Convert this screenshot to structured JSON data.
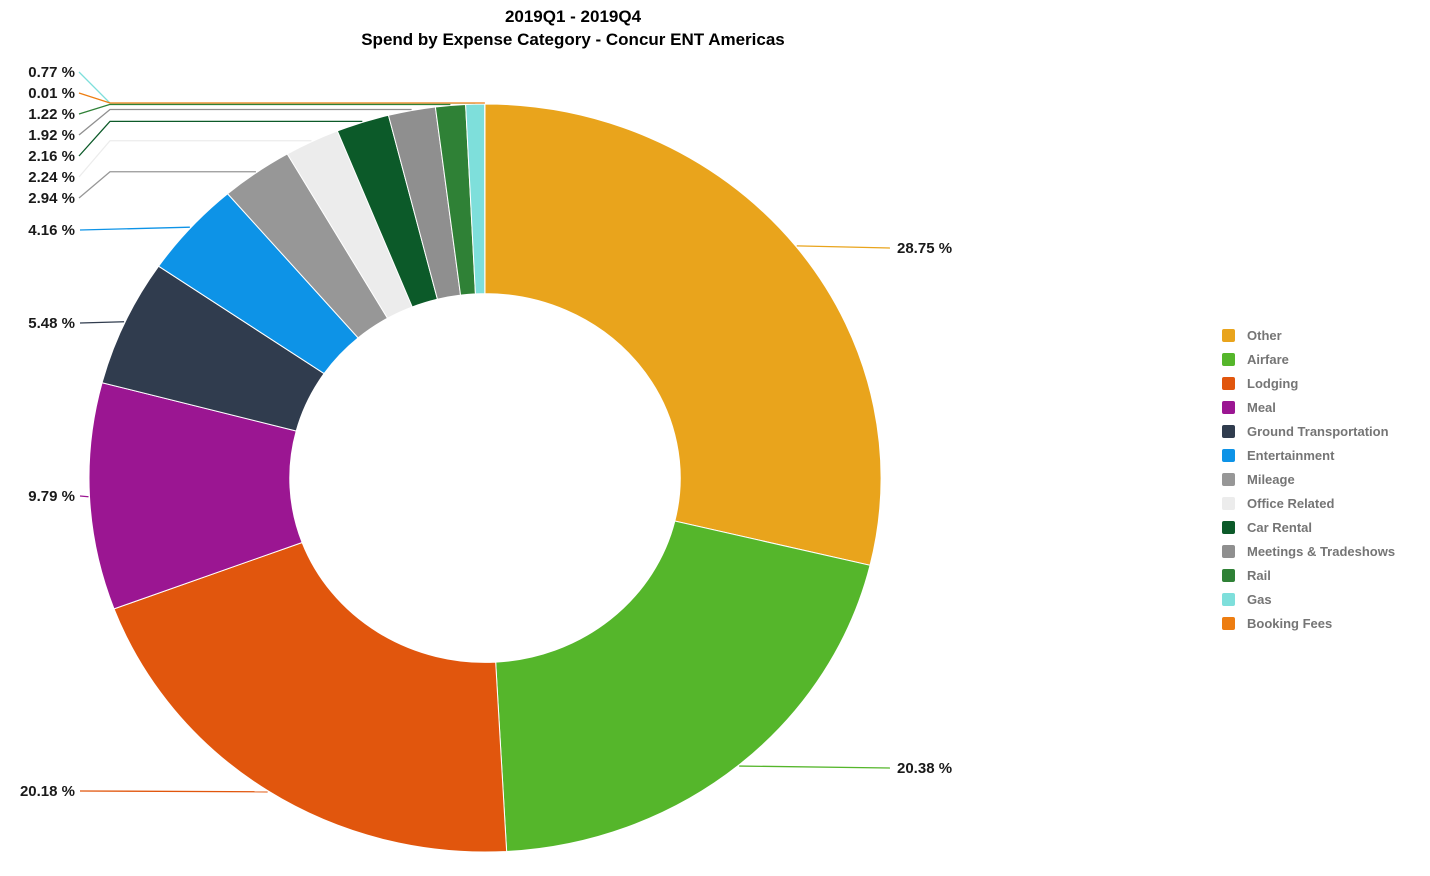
{
  "title": {
    "line1": "2019Q1 - 2019Q4",
    "line2": "Spend by Expense Category - Concur ENT Americas"
  },
  "chart_data": {
    "type": "pie",
    "subtype": "donut",
    "title": "2019Q1 - 2019Q4",
    "subtitle": "Spend by Expense Category - Concur ENT Americas",
    "unit": "%",
    "start_angle_deg": 0,
    "direction": "clockwise",
    "inner_radius_ratio": 0.493,
    "legend_position": "right",
    "total_pct": 100,
    "series": [
      {
        "label": "Other",
        "value_pct": 28.75,
        "value_label": "28.75 %",
        "color": "#E9A41C"
      },
      {
        "label": "Airfare",
        "value_pct": 20.38,
        "value_label": "20.38 %",
        "color": "#55B62B"
      },
      {
        "label": "Lodging",
        "value_pct": 20.18,
        "value_label": "20.18 %",
        "color": "#E1560D"
      },
      {
        "label": "Meal",
        "value_pct": 9.79,
        "value_label": "9.79 %",
        "color": "#9B1692"
      },
      {
        "label": "Ground Transportation",
        "value_pct": 5.48,
        "value_label": "5.48 %",
        "color": "#303C4E"
      },
      {
        "label": "Entertainment",
        "value_pct": 4.16,
        "value_label": "4.16 %",
        "color": "#0D93E7"
      },
      {
        "label": "Mileage",
        "value_pct": 2.94,
        "value_label": "2.94 %",
        "color": "#979797"
      },
      {
        "label": "Office Related",
        "value_pct": 2.24,
        "value_label": "2.24 %",
        "color": "#ECECEC"
      },
      {
        "label": "Car Rental",
        "value_pct": 2.16,
        "value_label": "2.16 %",
        "color": "#0C5A29"
      },
      {
        "label": "Meetings & Tradeshows",
        "value_pct": 1.92,
        "value_label": "1.92 %",
        "color": "#8F8F8F"
      },
      {
        "label": "Rail",
        "value_pct": 1.22,
        "value_label": "1.22 %",
        "color": "#2F8136"
      },
      {
        "label": "Gas",
        "value_pct": 0.77,
        "value_label": "0.77 %",
        "color": "#7EDFDB"
      },
      {
        "label": "Booking Fees",
        "value_pct": 0.01,
        "value_label": "0.01 %",
        "color": "#ED7D11"
      }
    ]
  },
  "text_colors": {
    "title": "#000000",
    "value_labels": "#1A1A1A",
    "legend_labels": "#757575"
  }
}
